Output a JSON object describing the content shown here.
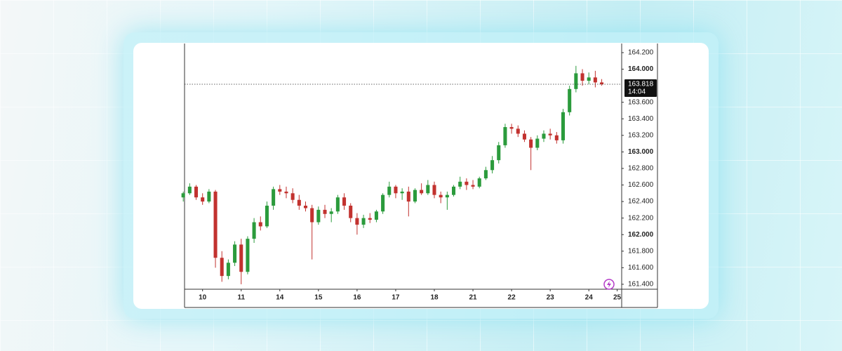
{
  "chart_data": {
    "type": "candlestick",
    "open": [
      162.45,
      162.5,
      162.58,
      162.45,
      162.4,
      162.52,
      161.72,
      161.5,
      161.66,
      161.88,
      161.55,
      161.95,
      162.15,
      162.1,
      162.35,
      162.55,
      162.52,
      162.5,
      162.42,
      162.35,
      162.32,
      162.15,
      162.3,
      162.25,
      162.28,
      162.45,
      162.35,
      162.2,
      162.12,
      162.2,
      162.18,
      162.28,
      162.48,
      162.58,
      162.5,
      162.52,
      162.4,
      162.54,
      162.5,
      162.6,
      162.48,
      162.45,
      162.48,
      162.58,
      162.64,
      162.6,
      162.58,
      162.68,
      162.78,
      162.9,
      163.08,
      163.3,
      163.28,
      163.22,
      163.15,
      163.05,
      163.16,
      163.22,
      163.2,
      163.14,
      163.48,
      163.76,
      163.95,
      163.86,
      163.9,
      163.84
    ],
    "high": [
      162.52,
      162.62,
      162.6,
      162.5,
      162.55,
      162.54,
      161.8,
      161.7,
      161.92,
      161.95,
      161.98,
      162.2,
      162.22,
      162.4,
      162.58,
      162.6,
      162.58,
      162.56,
      162.48,
      162.4,
      162.36,
      162.34,
      162.36,
      162.32,
      162.48,
      162.5,
      162.38,
      162.26,
      162.24,
      162.26,
      162.3,
      162.5,
      162.64,
      162.6,
      162.56,
      162.58,
      162.56,
      162.62,
      162.66,
      162.64,
      162.52,
      162.52,
      162.6,
      162.7,
      162.68,
      162.66,
      162.7,
      162.82,
      162.95,
      163.12,
      163.34,
      163.34,
      163.32,
      163.26,
      163.18,
      163.2,
      163.26,
      163.28,
      163.24,
      163.52,
      163.8,
      164.04,
      164.0,
      163.96,
      163.98,
      163.88
    ],
    "low": [
      162.4,
      162.48,
      162.42,
      162.36,
      162.38,
      161.6,
      161.43,
      161.46,
      161.62,
      161.4,
      161.52,
      161.9,
      162.05,
      162.08,
      162.3,
      162.48,
      162.44,
      162.38,
      162.3,
      162.28,
      161.7,
      162.12,
      162.2,
      162.15,
      162.25,
      162.3,
      162.15,
      162.0,
      162.08,
      162.14,
      162.15,
      162.25,
      162.45,
      162.44,
      162.42,
      162.22,
      162.38,
      162.48,
      162.48,
      162.44,
      162.38,
      162.3,
      162.46,
      162.55,
      162.54,
      162.55,
      162.56,
      162.66,
      162.74,
      162.86,
      163.05,
      163.22,
      163.18,
      163.12,
      162.78,
      163.02,
      163.12,
      163.15,
      163.1,
      163.1,
      163.44,
      163.72,
      163.8,
      163.82,
      163.78,
      163.8
    ],
    "close": [
      162.5,
      162.58,
      162.45,
      162.4,
      162.52,
      161.72,
      161.5,
      161.66,
      161.88,
      161.55,
      161.95,
      162.15,
      162.1,
      162.35,
      162.55,
      162.52,
      162.5,
      162.42,
      162.35,
      162.32,
      162.15,
      162.3,
      162.25,
      162.28,
      162.45,
      162.35,
      162.2,
      162.12,
      162.2,
      162.18,
      162.28,
      162.48,
      162.58,
      162.5,
      162.52,
      162.4,
      162.54,
      162.5,
      162.6,
      162.48,
      162.45,
      162.48,
      162.58,
      162.64,
      162.6,
      162.58,
      162.68,
      162.78,
      162.9,
      163.08,
      163.3,
      163.28,
      163.22,
      163.15,
      163.05,
      163.16,
      163.22,
      163.2,
      163.14,
      163.48,
      163.76,
      163.95,
      163.86,
      163.9,
      163.84,
      163.818
    ],
    "up_color": "#2b9b3c",
    "down_color": "#c2322f",
    "xlim": [
      0.2,
      68.1
    ],
    "xticks": [
      {
        "value": 3,
        "label": "10"
      },
      {
        "value": 9,
        "label": "11"
      },
      {
        "value": 15,
        "label": "14"
      },
      {
        "value": 21,
        "label": "15"
      },
      {
        "value": 27,
        "label": "16"
      },
      {
        "value": 33,
        "label": "17"
      },
      {
        "value": 39,
        "label": "18"
      },
      {
        "value": 45,
        "label": "21"
      },
      {
        "value": 51,
        "label": "22"
      },
      {
        "value": 57,
        "label": "23"
      },
      {
        "value": 63,
        "label": "24"
      },
      {
        "value": 67.4,
        "label": "25"
      }
    ],
    "ylim": [
      161.34,
      164.31
    ],
    "yticks": [
      {
        "value": 161.4,
        "label": "161.400"
      },
      {
        "value": 161.6,
        "label": "161.600"
      },
      {
        "value": 161.8,
        "label": "161.800"
      },
      {
        "value": 162,
        "label": "162.000"
      },
      {
        "value": 162.2,
        "label": "162.200"
      },
      {
        "value": 162.4,
        "label": "162.400"
      },
      {
        "value": 162.6,
        "label": "162.600"
      },
      {
        "value": 162.8,
        "label": "162.800"
      },
      {
        "value": 163,
        "label": "163.000"
      },
      {
        "value": 163.2,
        "label": "163.200"
      },
      {
        "value": 163.4,
        "label": "163.400"
      },
      {
        "value": 163.6,
        "label": "163.600"
      },
      {
        "value": 164,
        "label": "164.000"
      },
      {
        "value": 164.2,
        "label": "164.200"
      }
    ],
    "last_price": {
      "value": 163.818,
      "label": "163.818"
    },
    "countdown": "14:04",
    "grid": false
  }
}
